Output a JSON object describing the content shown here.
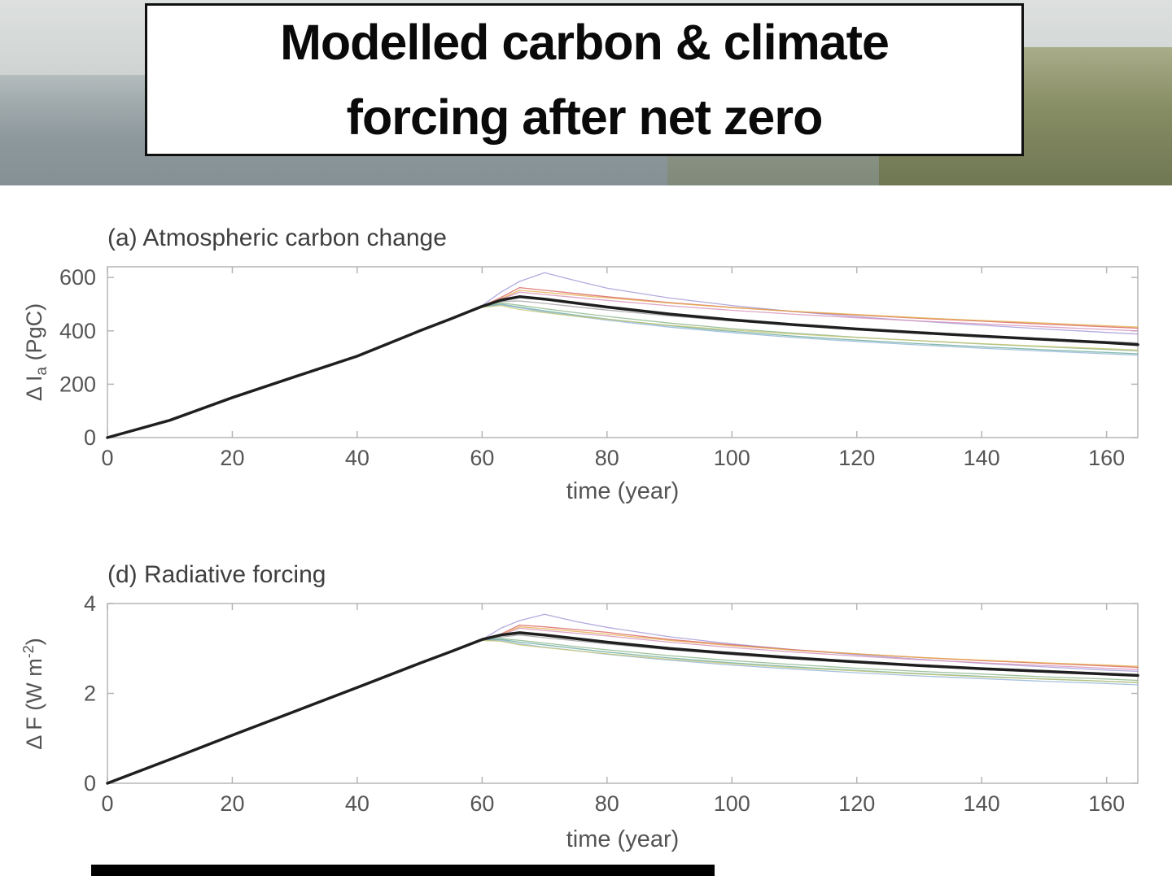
{
  "title": {
    "line1": "Modelled carbon & climate",
    "line2": "forcing after net zero"
  },
  "chart_data": [
    {
      "id": "a",
      "type": "line",
      "title": "(a) Atmospheric carbon change",
      "xlabel": "time (year)",
      "ylabel": "Δ Ia (PgC)",
      "ylabel_parts": {
        "prefix": "Δ I",
        "sub": "a",
        "suffix": " (PgC)"
      },
      "xlim": [
        0,
        165
      ],
      "ylim": [
        0,
        640
      ],
      "xticks": [
        0,
        20,
        40,
        60,
        80,
        100,
        120,
        140,
        160
      ],
      "yticks": [
        0,
        200,
        400,
        600
      ],
      "grid": false,
      "legend": "none",
      "x": [
        0,
        10,
        20,
        30,
        40,
        50,
        55,
        60,
        63,
        66,
        70,
        75,
        80,
        90,
        100,
        110,
        120,
        130,
        140,
        150,
        160,
        165
      ],
      "series": [
        {
          "name": "ensemble-purple",
          "color": "#a095d6",
          "width": 1.3,
          "opacity": 0.8,
          "values": [
            0,
            65,
            150,
            228,
            305,
            400,
            445,
            495,
            545,
            585,
            618,
            588,
            560,
            523,
            495,
            472,
            453,
            436,
            421,
            407,
            394,
            388
          ]
        },
        {
          "name": "ensemble-red",
          "color": "#d85c5c",
          "width": 1.3,
          "opacity": 0.8,
          "values": [
            0,
            65,
            150,
            228,
            305,
            400,
            445,
            492,
            525,
            562,
            552,
            540,
            528,
            506,
            488,
            472,
            459,
            447,
            436,
            425,
            415,
            410
          ]
        },
        {
          "name": "ensemble-orange",
          "color": "#e2ab45",
          "width": 1.3,
          "opacity": 0.8,
          "values": [
            0,
            65,
            150,
            228,
            305,
            400,
            445,
            492,
            520,
            552,
            544,
            534,
            524,
            504,
            487,
            473,
            461,
            449,
            439,
            429,
            419,
            414
          ]
        },
        {
          "name": "ensemble-pink",
          "color": "#d48fb8",
          "width": 1.3,
          "opacity": 0.8,
          "values": [
            0,
            65,
            150,
            228,
            305,
            400,
            445,
            492,
            518,
            545,
            536,
            525,
            514,
            494,
            477,
            462,
            449,
            437,
            426,
            415,
            405,
            400
          ]
        },
        {
          "name": "ensemble-gray",
          "color": "#9c9c9c",
          "width": 1.3,
          "opacity": 0.8,
          "values": [
            0,
            65,
            150,
            228,
            305,
            400,
            445,
            492,
            510,
            512,
            503,
            490,
            478,
            456,
            437,
            421,
            407,
            394,
            382,
            371,
            360,
            355
          ]
        },
        {
          "name": "ensemble-green",
          "color": "#86b386",
          "width": 1.3,
          "opacity": 0.8,
          "values": [
            0,
            65,
            150,
            228,
            305,
            400,
            445,
            490,
            505,
            496,
            483,
            468,
            454,
            429,
            408,
            391,
            376,
            363,
            351,
            340,
            330,
            325
          ]
        },
        {
          "name": "ensemble-teal",
          "color": "#63a89a",
          "width": 1.3,
          "opacity": 0.8,
          "values": [
            0,
            65,
            150,
            228,
            305,
            400,
            445,
            490,
            500,
            489,
            475,
            459,
            444,
            419,
            398,
            380,
            365,
            352,
            340,
            329,
            319,
            314
          ]
        },
        {
          "name": "ensemble-lightblue",
          "color": "#8fb3d6",
          "width": 1.3,
          "opacity": 0.8,
          "values": [
            0,
            65,
            150,
            228,
            305,
            400,
            445,
            488,
            498,
            486,
            471,
            455,
            440,
            414,
            393,
            375,
            360,
            347,
            335,
            324,
            314,
            309
          ]
        },
        {
          "name": "ensemble-olive",
          "color": "#c4c470",
          "width": 1.3,
          "opacity": 0.8,
          "values": [
            0,
            65,
            150,
            228,
            305,
            400,
            445,
            488,
            495,
            480,
            468,
            455,
            443,
            421,
            403,
            388,
            375,
            363,
            352,
            342,
            333,
            328
          ]
        },
        {
          "name": "ensemble-mean",
          "color": "#1f1f1f",
          "width": 3.5,
          "opacity": 1,
          "values": [
            0,
            65,
            150,
            228,
            305,
            400,
            445,
            492,
            515,
            528,
            519,
            504,
            489,
            463,
            441,
            423,
            407,
            393,
            380,
            368,
            356,
            348
          ]
        }
      ]
    },
    {
      "id": "d",
      "type": "line",
      "title": "(d) Radiative forcing",
      "xlabel": "time (year)",
      "ylabel": "Δ F (W m-2)",
      "ylabel_parts": {
        "prefix": "Δ F (W m",
        "sup": "-2",
        "suffix": ")"
      },
      "xlim": [
        0,
        165
      ],
      "ylim": [
        0,
        4
      ],
      "xticks": [
        0,
        20,
        40,
        60,
        80,
        100,
        120,
        140,
        160
      ],
      "yticks": [
        0,
        2,
        4
      ],
      "grid": false,
      "legend": "none",
      "x": [
        0,
        10,
        20,
        30,
        40,
        50,
        55,
        60,
        63,
        66,
        70,
        75,
        80,
        90,
        100,
        110,
        120,
        130,
        140,
        150,
        160,
        165
      ],
      "series": [
        {
          "name": "ensemble-purple",
          "color": "#a095d6",
          "width": 1.3,
          "opacity": 0.8,
          "values": [
            0,
            0.53,
            1.07,
            1.6,
            2.13,
            2.67,
            2.93,
            3.2,
            3.45,
            3.62,
            3.76,
            3.6,
            3.47,
            3.26,
            3.1,
            2.97,
            2.86,
            2.76,
            2.67,
            2.59,
            2.52,
            2.49
          ]
        },
        {
          "name": "ensemble-red",
          "color": "#d85c5c",
          "width": 1.3,
          "opacity": 0.8,
          "values": [
            0,
            0.53,
            1.07,
            1.6,
            2.13,
            2.67,
            2.93,
            3.2,
            3.32,
            3.52,
            3.48,
            3.42,
            3.36,
            3.2,
            3.08,
            2.97,
            2.88,
            2.8,
            2.73,
            2.67,
            2.61,
            2.58
          ]
        },
        {
          "name": "ensemble-orange",
          "color": "#e2ab45",
          "width": 1.3,
          "opacity": 0.8,
          "values": [
            0,
            0.53,
            1.07,
            1.6,
            2.13,
            2.67,
            2.93,
            3.2,
            3.3,
            3.48,
            3.44,
            3.38,
            3.32,
            3.18,
            3.06,
            2.96,
            2.88,
            2.8,
            2.74,
            2.68,
            2.63,
            2.6
          ]
        },
        {
          "name": "ensemble-pink",
          "color": "#d48fb8",
          "width": 1.3,
          "opacity": 0.8,
          "values": [
            0,
            0.53,
            1.07,
            1.6,
            2.13,
            2.67,
            2.93,
            3.2,
            3.3,
            3.45,
            3.4,
            3.34,
            3.28,
            3.14,
            3.02,
            2.92,
            2.83,
            2.75,
            2.68,
            2.62,
            2.56,
            2.53
          ]
        },
        {
          "name": "ensemble-gray",
          "color": "#9c9c9c",
          "width": 1.3,
          "opacity": 0.8,
          "values": [
            0,
            0.53,
            1.07,
            1.6,
            2.13,
            2.67,
            2.93,
            3.2,
            3.25,
            3.3,
            3.24,
            3.17,
            3.1,
            2.97,
            2.86,
            2.76,
            2.68,
            2.6,
            2.53,
            2.47,
            2.41,
            2.38
          ]
        },
        {
          "name": "ensemble-green",
          "color": "#86b386",
          "width": 1.3,
          "opacity": 0.8,
          "values": [
            0,
            0.53,
            1.07,
            1.6,
            2.13,
            2.67,
            2.93,
            3.19,
            3.22,
            3.18,
            3.12,
            3.04,
            2.97,
            2.84,
            2.73,
            2.64,
            2.56,
            2.49,
            2.43,
            2.37,
            2.32,
            2.29
          ]
        },
        {
          "name": "ensemble-teal",
          "color": "#63a89a",
          "width": 1.3,
          "opacity": 0.8,
          "values": [
            0,
            0.53,
            1.07,
            1.6,
            2.13,
            2.67,
            2.93,
            3.19,
            3.2,
            3.14,
            3.08,
            3.0,
            2.92,
            2.79,
            2.68,
            2.59,
            2.51,
            2.44,
            2.38,
            2.32,
            2.27,
            2.24
          ]
        },
        {
          "name": "ensemble-lightblue",
          "color": "#8fb3d6",
          "width": 1.3,
          "opacity": 0.8,
          "values": [
            0,
            0.53,
            1.07,
            1.6,
            2.13,
            2.67,
            2.93,
            3.18,
            3.18,
            3.1,
            3.03,
            2.95,
            2.87,
            2.74,
            2.63,
            2.54,
            2.46,
            2.39,
            2.33,
            2.27,
            2.22,
            2.19
          ]
        },
        {
          "name": "ensemble-olive",
          "color": "#c4c470",
          "width": 1.3,
          "opacity": 0.8,
          "values": [
            0,
            0.53,
            1.07,
            1.6,
            2.13,
            2.67,
            2.93,
            3.18,
            3.16,
            3.08,
            3.02,
            2.95,
            2.88,
            2.76,
            2.66,
            2.57,
            2.5,
            2.43,
            2.37,
            2.32,
            2.27,
            2.24
          ]
        },
        {
          "name": "ensemble-mean",
          "color": "#1f1f1f",
          "width": 3.5,
          "opacity": 1,
          "values": [
            0,
            0.53,
            1.07,
            1.6,
            2.13,
            2.67,
            2.93,
            3.2,
            3.3,
            3.35,
            3.3,
            3.22,
            3.14,
            3.0,
            2.89,
            2.79,
            2.7,
            2.62,
            2.55,
            2.49,
            2.43,
            2.4
          ]
        }
      ]
    }
  ],
  "style": {
    "axis_color": "#b5b5b5",
    "tick_label_color": "#555555",
    "bottom_bar_color": "#000000"
  }
}
